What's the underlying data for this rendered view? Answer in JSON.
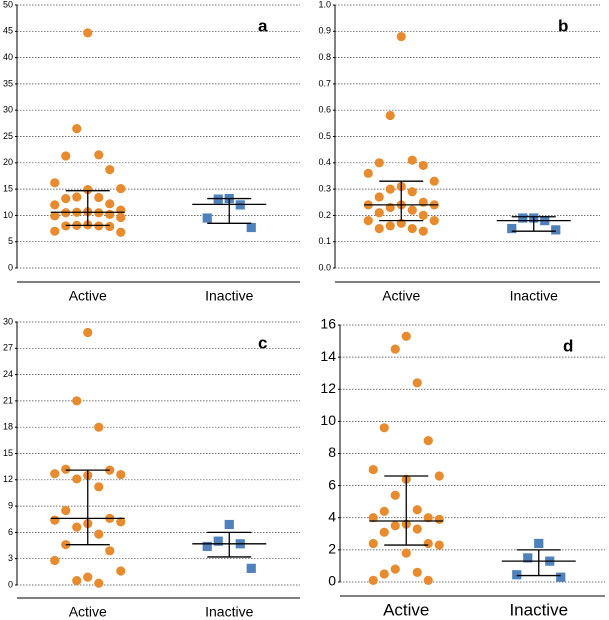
{
  "chart_data": [
    {
      "type": "dot",
      "label": "a",
      "categories": [
        "Active",
        "Inactive"
      ],
      "ylim": [
        0,
        50
      ],
      "yticks": [
        0,
        5,
        10,
        15,
        20,
        25,
        30,
        35,
        40,
        45,
        50
      ],
      "grid": true,
      "groups": [
        {
          "color": "#e88b2e",
          "marker": "circle",
          "values": [
            44.7,
            26.5,
            21.5,
            21.3,
            18.7,
            16.2,
            15.1,
            14.9,
            13.5,
            13.4,
            13.2,
            12.2,
            12.0,
            11.0,
            10.7,
            10.6,
            10.5,
            10.5,
            10.2,
            9.9,
            9.6,
            8.2,
            8.1,
            8.0,
            8.0,
            7.9,
            7.0,
            6.8
          ],
          "median": 10.6,
          "q1": 8.1,
          "q3": 14.7
        },
        {
          "color": "#4f81bd",
          "marker": "square",
          "values": [
            13.2,
            13.1,
            12.0,
            9.5,
            7.7
          ],
          "median": 12.1,
          "q1": 8.5,
          "q3": 13.2
        }
      ]
    },
    {
      "type": "dot",
      "label": "b",
      "categories": [
        "Active",
        "Inactive"
      ],
      "ylim": [
        0,
        1
      ],
      "yticks": [
        {
          "value": 0,
          "label": "0.0"
        },
        0.1,
        0.2,
        0.3,
        0.4,
        0.5,
        0.6,
        0.7,
        0.8,
        0.9,
        {
          "value": 1,
          "label": "1.0"
        }
      ],
      "grid": true,
      "groups": [
        {
          "color": "#e88b2e",
          "marker": "circle",
          "values": [
            0.88,
            0.58,
            0.41,
            0.4,
            0.39,
            0.36,
            0.33,
            0.31,
            0.3,
            0.29,
            0.27,
            0.25,
            0.24,
            0.24,
            0.24,
            0.23,
            0.22,
            0.21,
            0.2,
            0.18,
            0.18,
            0.17,
            0.16,
            0.15,
            0.15,
            0.14
          ],
          "median": 0.24,
          "q1": 0.18,
          "q3": 0.33
        },
        {
          "color": "#4f81bd",
          "marker": "square",
          "values": [
            0.19,
            0.19,
            0.18,
            0.15,
            0.145
          ],
          "median": 0.18,
          "q1": 0.14,
          "q3": 0.195
        }
      ]
    },
    {
      "type": "dot",
      "label": "c",
      "categories": [
        "Active",
        "Inactive"
      ],
      "ylim": [
        0,
        30
      ],
      "yticks": [
        0,
        3,
        6,
        9,
        12,
        15,
        18,
        21,
        24,
        27,
        30
      ],
      "grid": true,
      "groups": [
        {
          "color": "#e88b2e",
          "marker": "circle",
          "values": [
            28.8,
            21.0,
            18.0,
            13.2,
            13.1,
            12.7,
            12.6,
            12.5,
            12.1,
            11.2,
            8.5,
            7.6,
            7.4,
            7.2,
            7.0,
            6.6,
            5.8,
            4.6,
            3.9,
            2.8,
            1.6,
            0.9,
            0.5,
            0.2
          ],
          "median": 7.6,
          "q1": 4.6,
          "q3": 13.1
        },
        {
          "color": "#4f81bd",
          "marker": "square",
          "values": [
            6.9,
            5.0,
            4.7,
            4.4,
            1.9
          ],
          "median": 4.7,
          "q1": 3.2,
          "q3": 6.0
        }
      ]
    },
    {
      "type": "dot",
      "label": "d",
      "categories": [
        "Active",
        "Inactive"
      ],
      "ylim": [
        0,
        16
      ],
      "yticks": [
        0,
        2,
        4,
        6,
        8,
        10,
        12,
        14,
        16
      ],
      "grid": true,
      "groups": [
        {
          "color": "#e88b2e",
          "marker": "circle",
          "values": [
            15.3,
            14.5,
            12.4,
            9.6,
            8.8,
            7.0,
            6.6,
            6.4,
            5.4,
            4.5,
            4.4,
            4.0,
            4.0,
            3.9,
            3.6,
            3.5,
            3.3,
            3.1,
            2.4,
            2.4,
            2.3,
            1.8,
            0.8,
            0.6,
            0.5,
            0.1,
            0.1
          ],
          "median": 3.8,
          "q1": 2.3,
          "q3": 6.6
        },
        {
          "color": "#4f81bd",
          "marker": "square",
          "values": [
            2.4,
            1.5,
            1.3,
            0.45,
            0.3
          ],
          "median": 1.3,
          "q1": 0.4,
          "q3": 2.0
        }
      ]
    }
  ]
}
